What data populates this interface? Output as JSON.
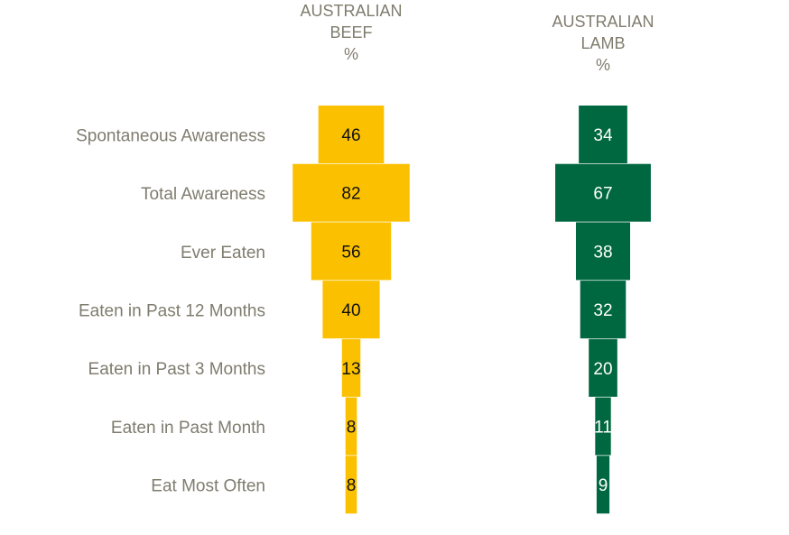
{
  "chart_data": {
    "type": "bar",
    "categories": [
      "Spontaneous Awareness",
      "Total Awareness",
      "Ever Eaten",
      "Eaten in Past 12 Months",
      "Eaten in Past 3 Months",
      "Eaten in Past Month",
      "Eat Most Often"
    ],
    "series": [
      {
        "title_lines": [
          "AUSTRALIAN",
          "BEEF",
          "%"
        ],
        "color": "#fbc100",
        "value_color": "#111111",
        "values": [
          46,
          82,
          56,
          40,
          13,
          8,
          8
        ]
      },
      {
        "title_lines": [
          "AUSTRALIAN",
          "LAMB",
          "%"
        ],
        "color": "#006840",
        "value_color": "#ffffff",
        "values": [
          34,
          67,
          38,
          32,
          20,
          11,
          9
        ]
      }
    ]
  }
}
